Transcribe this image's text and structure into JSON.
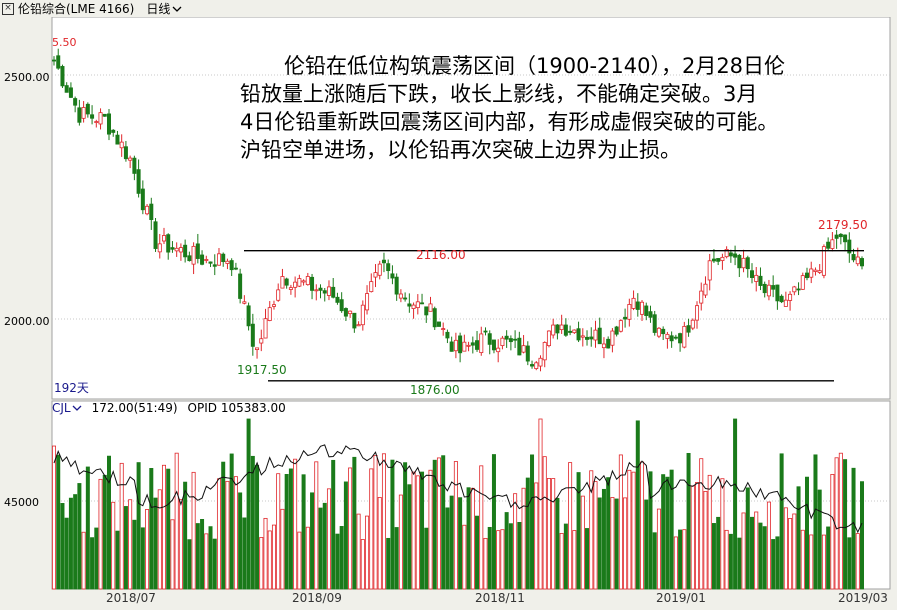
{
  "titlebar": {
    "instrument": "伦铅综合(LME 4166)",
    "period": "日线"
  },
  "chart": {
    "y_labels": [
      "2500.00",
      "2000.00"
    ],
    "days_label": "192天",
    "top_left_value": "5.50",
    "price_labels": {
      "high_right": "2179.50",
      "mid_high": "2116.00",
      "low_left": "1917.50",
      "low_mid": "1876.00"
    },
    "colors": {
      "up": "#e0262a",
      "down": "#1a7a1a",
      "level_line": "#000000",
      "grid": "#c8c8c8"
    }
  },
  "annotation": {
    "line1": "伦铅在低位构筑震荡区间（1900-2140），2月28日伦",
    "line2": "铅放量上涨随后下跌，收长上影线，不能确定突破。3月",
    "line3": "4日伦铅重新跌回震荡区间内部，有形成虚假突破的可能。",
    "line4": "沪铅空单进场，以伦铅再次突破上边界为止损。"
  },
  "volume": {
    "indicator": "CJL",
    "value": "172.00(51:49)",
    "opid": "OPID 105383.00",
    "y_label": "45000"
  },
  "xaxis": [
    "2018/07",
    "2018/09",
    "2018/11",
    "2019/01",
    "2019/03"
  ],
  "chart_data": {
    "type": "candlestick",
    "support_level": 1900,
    "resistance_level": 2140,
    "annotated_prices": [
      5.5,
      2179.5,
      2116.0,
      1917.5,
      1876.0
    ],
    "y_ticks": [
      2500,
      2000
    ],
    "volume_y_tick": 45000,
    "x_ticks": [
      "2018/07",
      "2018/09",
      "2018/11",
      "2019/01",
      "2019/03"
    ],
    "approx_trend": [
      2530,
      2420,
      2410,
      2330,
      2160,
      2140,
      2120,
      2125,
      1930,
      2090,
      2070,
      2050,
      1990,
      2110,
      2040,
      2010,
      1930,
      1960,
      1950,
      1920,
      1990,
      1970,
      1960,
      2050,
      1960,
      1970,
      2120,
      2130,
      2060,
      2030,
      2090,
      2170,
      2100
    ]
  }
}
